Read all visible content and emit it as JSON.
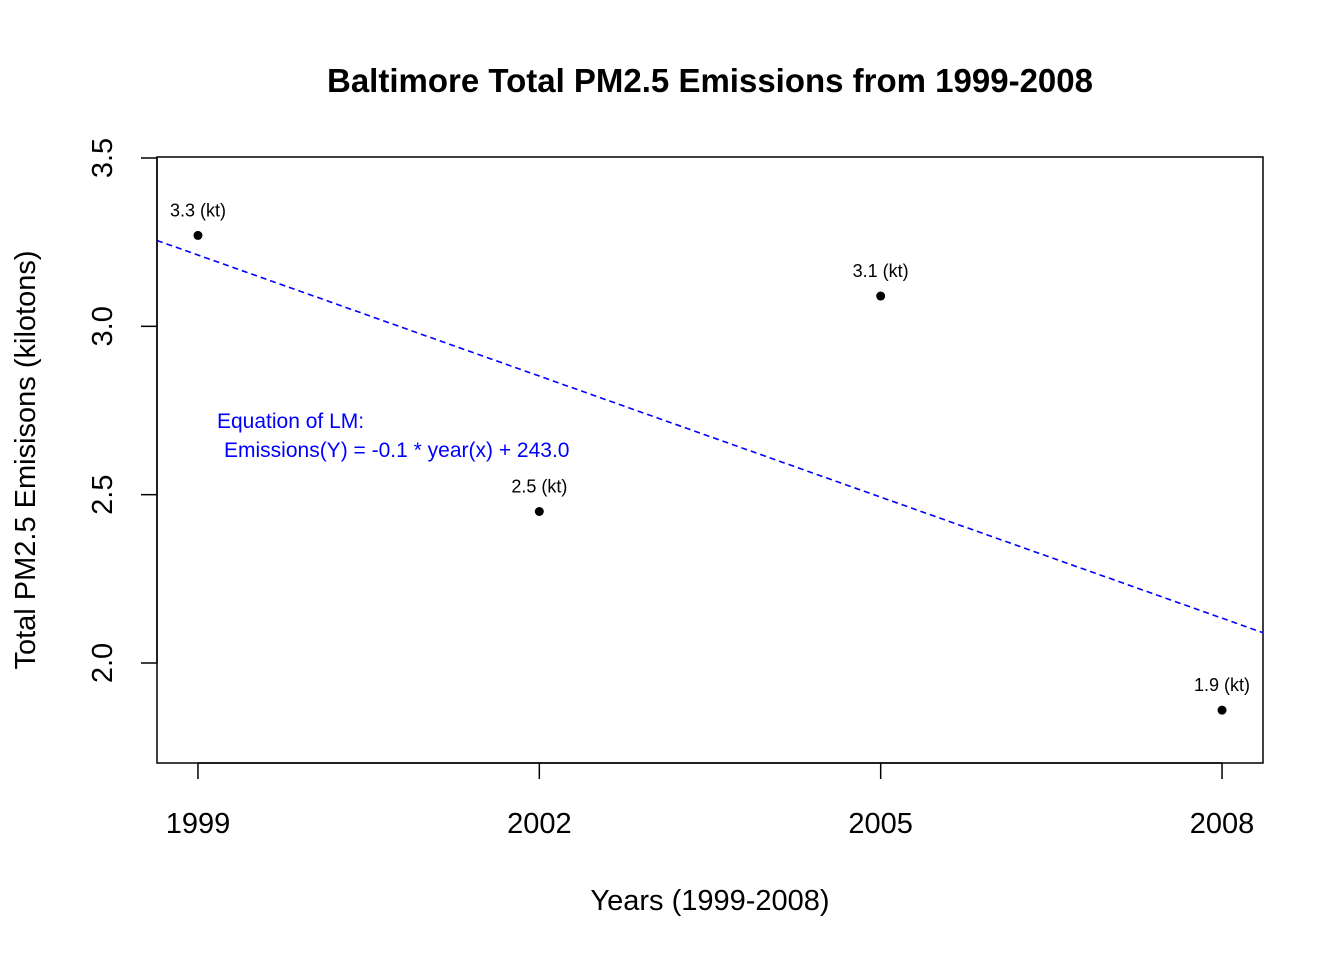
{
  "chart_data": {
    "type": "scatter",
    "title": "Baltimore Total PM2.5 Emissions from 1999-2008",
    "xlabel": "Years (1999-2008)",
    "ylabel": "Total PM2.5 Emisisons (kilotons)",
    "x": [
      1999,
      2002,
      2005,
      2008
    ],
    "y": [
      3.27,
      2.45,
      3.09,
      1.86
    ],
    "point_labels": [
      "3.3 (kt)",
      "2.5 (kt)",
      "3.1 (kt)",
      "1.9 (kt)"
    ],
    "x_ticks": [
      1999,
      2002,
      2005,
      2008
    ],
    "x_tick_labels": [
      "1999",
      "2002",
      "2005",
      "2008"
    ],
    "y_ticks": [
      2.0,
      2.5,
      3.0,
      3.5
    ],
    "y_tick_labels": [
      "2.0",
      "2.5",
      "3.0",
      "3.5"
    ],
    "xlim": [
      1998.64,
      2008.36
    ],
    "ylim": [
      1.7,
      3.5
    ],
    "regression_line": {
      "color": "#0000ff",
      "style": "dashed",
      "points": [
        [
          1998.64,
          3.255
        ],
        [
          2008.36,
          2.09
        ]
      ]
    },
    "annotation": {
      "line1": "Equation of LM:",
      "line2": "Emissions(Y) = -0.1 * year(x) + 243.0",
      "color": "#0000ff"
    },
    "grid": false,
    "legend": "none"
  }
}
